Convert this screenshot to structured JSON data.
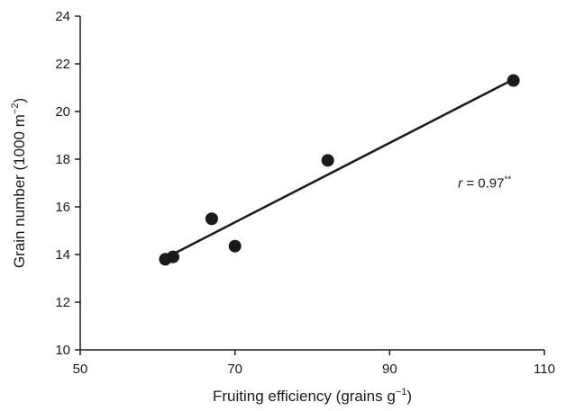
{
  "chart_data": {
    "type": "scatter",
    "xlabel": {
      "text": "Fruiting efficiency (grains g",
      "superscript": "−1",
      "suffix": ")"
    },
    "ylabel": {
      "text": "Grain number (1000 m",
      "superscript": "−2",
      "suffix": ")"
    },
    "xlim": [
      50,
      110
    ],
    "ylim": [
      10,
      24
    ],
    "x_ticks": [
      50,
      70,
      90,
      110
    ],
    "y_ticks": [
      10,
      12,
      14,
      16,
      18,
      20,
      22,
      24
    ],
    "points": [
      {
        "x": 61,
        "y": 13.8
      },
      {
        "x": 62,
        "y": 13.9
      },
      {
        "x": 67,
        "y": 15.5
      },
      {
        "x": 70,
        "y": 14.35
      },
      {
        "x": 82,
        "y": 17.95
      },
      {
        "x": 106,
        "y": 21.3
      }
    ],
    "regression_line": {
      "x": [
        61,
        106
      ],
      "y": [
        13.85,
        21.35
      ]
    },
    "annotation": {
      "italic": "r",
      "text": " = 0.97",
      "superscript": "**",
      "x": 100,
      "y": 17.0
    },
    "grid": false,
    "legend": "none",
    "colors": {
      "points": "#1a1a1a",
      "line": "#1a1a1a",
      "axes": "#1a1a1a"
    }
  }
}
